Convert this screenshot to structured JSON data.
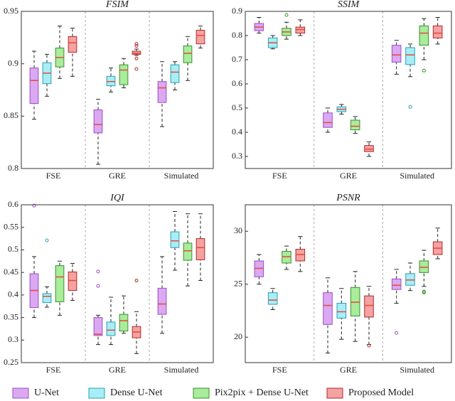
{
  "legend": [
    {
      "name": "U-Net",
      "color": "#dba8f2",
      "edge": "#9b4fc4"
    },
    {
      "name": "Dense U-Net",
      "color": "#a8eef6",
      "edge": "#2a9fb3"
    },
    {
      "name": "Pix2pix + Dense U-Net",
      "color": "#a8ec9c",
      "edge": "#3a8f2e"
    },
    {
      "name": "Proposed Model",
      "color": "#f5a2a2",
      "edge": "#b02a2a"
    }
  ],
  "median_color": "#e8483c",
  "chart_data": [
    {
      "type": "box",
      "title": "FSIM",
      "categories": [
        "FSE",
        "GRE",
        "Simulated"
      ],
      "ylim": [
        0.8,
        0.95
      ],
      "yticks": [
        0.8,
        0.85,
        0.9,
        0.95
      ],
      "series": [
        {
          "values": [
            {
              "min": 0.847,
              "q1": 0.862,
              "median": 0.884,
              "q3": 0.896,
              "max": 0.912,
              "outliers": []
            },
            {
              "min": 0.804,
              "q1": 0.834,
              "median": 0.842,
              "q3": 0.856,
              "max": 0.866,
              "outliers": []
            },
            {
              "min": 0.84,
              "q1": 0.863,
              "median": 0.877,
              "q3": 0.883,
              "max": 0.902,
              "outliers": []
            }
          ]
        },
        {
          "values": [
            {
              "min": 0.869,
              "q1": 0.881,
              "median": 0.891,
              "q3": 0.901,
              "max": 0.909,
              "outliers": []
            },
            {
              "min": 0.873,
              "q1": 0.879,
              "median": 0.883,
              "q3": 0.888,
              "max": 0.896,
              "outliers": []
            },
            {
              "min": 0.875,
              "q1": 0.882,
              "median": 0.892,
              "q3": 0.899,
              "max": 0.902,
              "outliers": []
            }
          ]
        },
        {
          "values": [
            {
              "min": 0.886,
              "q1": 0.897,
              "median": 0.906,
              "q3": 0.915,
              "max": 0.936,
              "outliers": []
            },
            {
              "min": 0.877,
              "q1": 0.88,
              "median": 0.894,
              "q3": 0.899,
              "max": 0.905,
              "outliers": []
            },
            {
              "min": 0.884,
              "q1": 0.901,
              "median": 0.91,
              "q3": 0.917,
              "max": 0.926,
              "outliers": []
            }
          ]
        },
        {
          "values": [
            {
              "min": 0.888,
              "q1": 0.911,
              "median": 0.92,
              "q3": 0.926,
              "max": 0.934,
              "outliers": []
            },
            {
              "min": 0.908,
              "q1": 0.909,
              "median": 0.91,
              "q3": 0.912,
              "max": 0.914,
              "outliers": [
                0.919,
                0.917,
                0.905,
                0.895
              ]
            },
            {
              "min": 0.915,
              "q1": 0.919,
              "median": 0.927,
              "q3": 0.932,
              "max": 0.936,
              "outliers": []
            }
          ]
        }
      ]
    },
    {
      "type": "box",
      "title": "SSIM",
      "categories": [
        "FSE",
        "GRE",
        "Simulated"
      ],
      "ylim": [
        0.25,
        0.9
      ],
      "yticks": [
        0.3,
        0.4,
        0.5,
        0.6,
        0.7,
        0.8,
        0.9
      ],
      "series": [
        {
          "values": [
            {
              "min": 0.81,
              "q1": 0.82,
              "median": 0.835,
              "q3": 0.85,
              "max": 0.875,
              "outliers": []
            },
            {
              "min": 0.4,
              "q1": 0.42,
              "median": 0.44,
              "q3": 0.48,
              "max": 0.5,
              "outliers": []
            },
            {
              "min": 0.64,
              "q1": 0.69,
              "median": 0.72,
              "q3": 0.76,
              "max": 0.78,
              "outliers": []
            }
          ]
        },
        {
          "values": [
            {
              "min": 0.745,
              "q1": 0.75,
              "median": 0.77,
              "q3": 0.79,
              "max": 0.8,
              "outliers": []
            },
            {
              "min": 0.475,
              "q1": 0.485,
              "median": 0.495,
              "q3": 0.505,
              "max": 0.515,
              "outliers": []
            },
            {
              "min": 0.63,
              "q1": 0.68,
              "median": 0.72,
              "q3": 0.75,
              "max": 0.765,
              "outliers": [
                0.505
              ]
            }
          ]
        },
        {
          "values": [
            {
              "min": 0.785,
              "q1": 0.8,
              "median": 0.815,
              "q3": 0.83,
              "max": 0.855,
              "outliers": [
                0.885
              ]
            },
            {
              "min": 0.395,
              "q1": 0.41,
              "median": 0.425,
              "q3": 0.45,
              "max": 0.465,
              "outliers": []
            },
            {
              "min": 0.7,
              "q1": 0.76,
              "median": 0.81,
              "q3": 0.84,
              "max": 0.87,
              "outliers": [
                0.655
              ]
            }
          ]
        },
        {
          "values": [
            {
              "min": 0.8,
              "q1": 0.81,
              "median": 0.825,
              "q3": 0.835,
              "max": 0.865,
              "outliers": []
            },
            {
              "min": 0.3,
              "q1": 0.32,
              "median": 0.33,
              "q3": 0.345,
              "max": 0.36,
              "outliers": []
            },
            {
              "min": 0.765,
              "q1": 0.79,
              "median": 0.81,
              "q3": 0.84,
              "max": 0.875,
              "outliers": []
            }
          ]
        }
      ]
    },
    {
      "type": "box",
      "title": "IQI",
      "categories": [
        "FSE",
        "GRE",
        "Simulated"
      ],
      "ylim": [
        0.25,
        0.6
      ],
      "yticks": [
        0.25,
        0.3,
        0.35,
        0.4,
        0.45,
        0.5,
        0.55,
        0.6
      ],
      "series": [
        {
          "values": [
            {
              "min": 0.35,
              "q1": 0.372,
              "median": 0.41,
              "q3": 0.447,
              "max": 0.485,
              "outliers": [
                0.598
              ]
            },
            {
              "min": 0.29,
              "q1": 0.31,
              "median": 0.313,
              "q3": 0.35,
              "max": 0.355,
              "outliers": [
                0.452,
                0.42
              ]
            },
            {
              "min": 0.315,
              "q1": 0.357,
              "median": 0.38,
              "q3": 0.415,
              "max": 0.485,
              "outliers": []
            }
          ]
        },
        {
          "values": [
            {
              "min": 0.373,
              "q1": 0.383,
              "median": 0.397,
              "q3": 0.403,
              "max": 0.418,
              "outliers": [
                0.521
              ]
            },
            {
              "min": 0.29,
              "q1": 0.31,
              "median": 0.322,
              "q3": 0.34,
              "max": 0.395,
              "outliers": []
            },
            {
              "min": 0.455,
              "q1": 0.505,
              "median": 0.52,
              "q3": 0.54,
              "max": 0.585,
              "outliers": []
            }
          ]
        },
        {
          "values": [
            {
              "min": 0.355,
              "q1": 0.385,
              "median": 0.44,
              "q3": 0.465,
              "max": 0.475,
              "outliers": []
            },
            {
              "min": 0.315,
              "q1": 0.32,
              "median": 0.343,
              "q3": 0.357,
              "max": 0.398,
              "outliers": []
            },
            {
              "min": 0.42,
              "q1": 0.477,
              "median": 0.498,
              "q3": 0.515,
              "max": 0.58,
              "outliers": []
            }
          ]
        },
        {
          "values": [
            {
              "min": 0.388,
              "q1": 0.41,
              "median": 0.432,
              "q3": 0.451,
              "max": 0.47,
              "outliers": []
            },
            {
              "min": 0.27,
              "q1": 0.305,
              "median": 0.318,
              "q3": 0.33,
              "max": 0.363,
              "outliers": [
                0.432
              ]
            },
            {
              "min": 0.432,
              "q1": 0.478,
              "median": 0.505,
              "q3": 0.525,
              "max": 0.58,
              "outliers": []
            }
          ]
        }
      ]
    },
    {
      "type": "box",
      "title": "PSNR",
      "categories": [
        "FSE",
        "GRE",
        "Simulated"
      ],
      "ylim": [
        17.6,
        32.5
      ],
      "yticks": [
        20,
        25,
        30
      ],
      "series": [
        {
          "values": [
            {
              "min": 25.0,
              "q1": 25.7,
              "median": 26.5,
              "q3": 27.2,
              "max": 27.8,
              "outliers": []
            },
            {
              "min": 18.5,
              "q1": 21.2,
              "median": 23.0,
              "q3": 24.2,
              "max": 25.6,
              "outliers": []
            },
            {
              "min": 23.2,
              "q1": 24.5,
              "median": 24.9,
              "q3": 25.5,
              "max": 26.4,
              "outliers": [
                20.4
              ]
            }
          ]
        },
        {
          "values": [
            {
              "min": 22.6,
              "q1": 23.1,
              "median": 23.5,
              "q3": 24.2,
              "max": 24.6,
              "outliers": []
            },
            {
              "min": 19.8,
              "q1": 21.8,
              "median": 22.4,
              "q3": 23.2,
              "max": 24.6,
              "outliers": []
            },
            {
              "min": 24.4,
              "q1": 24.9,
              "median": 25.4,
              "q3": 26.0,
              "max": 27.0,
              "outliers": []
            }
          ]
        },
        {
          "values": [
            {
              "min": 26.4,
              "q1": 27.0,
              "median": 27.6,
              "q3": 28.1,
              "max": 28.6,
              "outliers": []
            },
            {
              "min": 19.6,
              "q1": 22.0,
              "median": 23.3,
              "q3": 24.7,
              "max": 26.2,
              "outliers": []
            },
            {
              "min": 24.8,
              "q1": 26.1,
              "median": 26.6,
              "q3": 27.2,
              "max": 28.2,
              "outliers": [
                24.3,
                24.2
              ]
            }
          ]
        },
        {
          "values": [
            {
              "min": 26.2,
              "q1": 27.2,
              "median": 27.8,
              "q3": 28.3,
              "max": 29.5,
              "outliers": []
            },
            {
              "min": 19.3,
              "q1": 21.9,
              "median": 23.0,
              "q3": 23.9,
              "max": 24.8,
              "outliers": [
                19.2
              ]
            },
            {
              "min": 27.4,
              "q1": 27.8,
              "median": 28.4,
              "q3": 29.0,
              "max": 30.3,
              "outliers": []
            }
          ]
        }
      ]
    }
  ]
}
